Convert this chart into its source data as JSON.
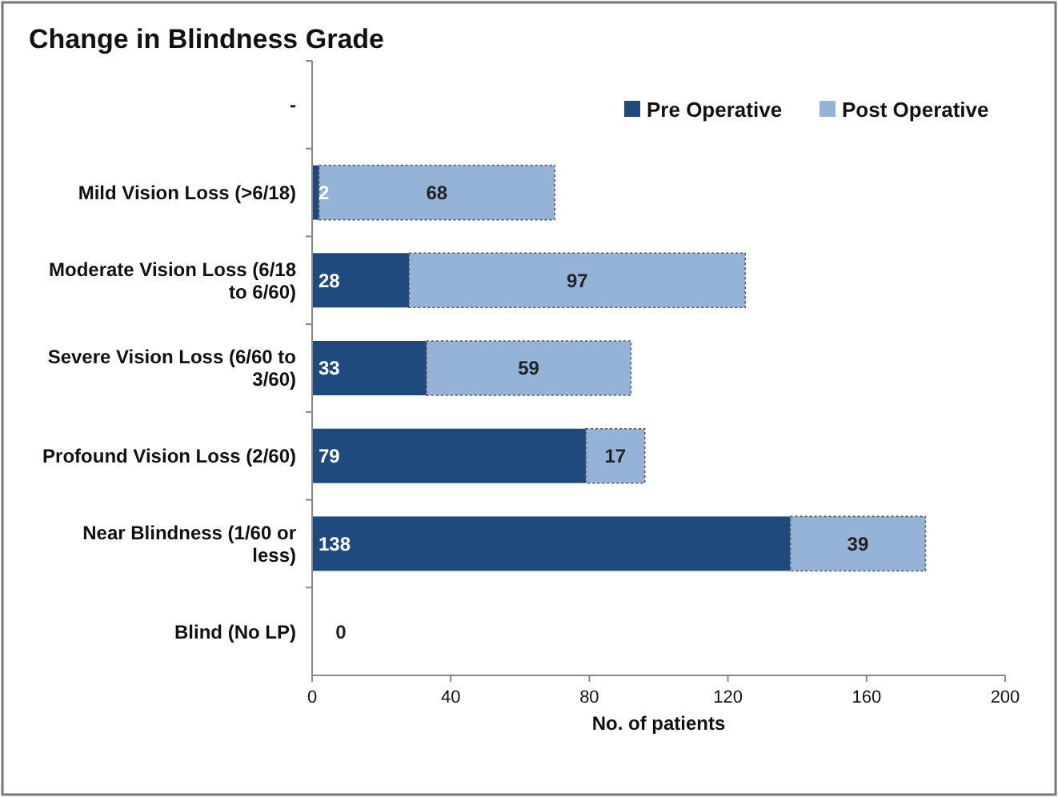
{
  "chart_data": {
    "type": "bar",
    "orientation": "horizontal",
    "stacked": true,
    "title": "Change in Blindness Grade",
    "xlabel": "No. of patients",
    "categories": [
      "-",
      "Mild Vision Loss (>6/18)",
      "Moderate Vision Loss (6/18 to 6/60)",
      "Severe Vision Loss (6/60 to 3/60)",
      "Profound Vision Loss (2/60)",
      "Near Blindness (1/60 or less)",
      "Blind (No LP)"
    ],
    "series": [
      {
        "name": "Pre Operative",
        "color": "#1f4a7e",
        "values": [
          null,
          2,
          28,
          33,
          79,
          138,
          0
        ]
      },
      {
        "name": "Post Operative",
        "color": "#95b3d7",
        "values": [
          null,
          68,
          97,
          59,
          17,
          39,
          null
        ]
      }
    ],
    "data_labels": true,
    "xlim": [
      0,
      200
    ],
    "xticks": [
      0,
      40,
      80,
      120,
      160,
      200
    ],
    "legend": "top right",
    "grid": false
  }
}
